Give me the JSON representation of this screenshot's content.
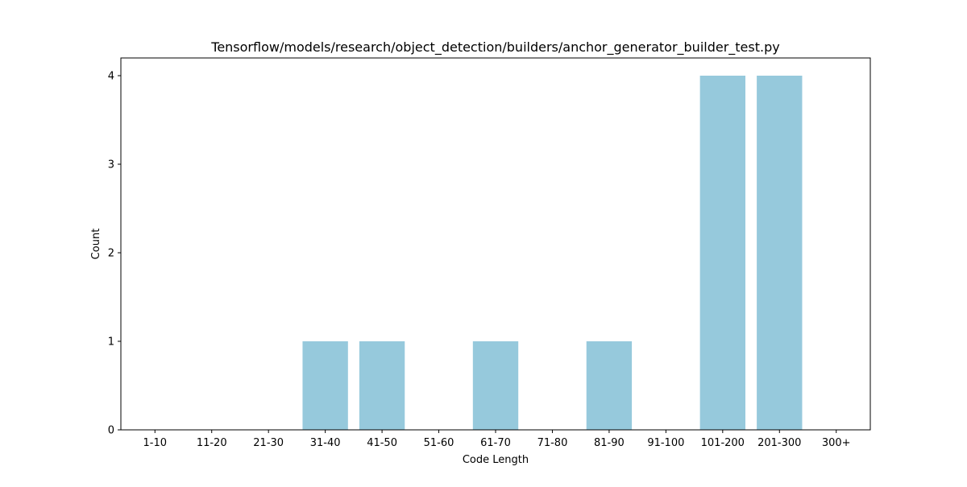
{
  "chart_data": {
    "type": "bar",
    "title": "Tensorflow/models/research/object_detection/builders/anchor_generator_builder_test.py",
    "xlabel": "Code Length",
    "ylabel": "Count",
    "categories": [
      "1-10",
      "11-20",
      "21-30",
      "31-40",
      "41-50",
      "51-60",
      "61-70",
      "71-80",
      "81-90",
      "91-100",
      "101-200",
      "201-300",
      "300+"
    ],
    "values": [
      0,
      0,
      0,
      1,
      1,
      0,
      1,
      0,
      1,
      0,
      4,
      4,
      0
    ],
    "ylim": [
      0,
      4.2
    ],
    "yticks": [
      0,
      1,
      2,
      3,
      4
    ],
    "bar_color": "#96c9dc",
    "grid": false,
    "legend": "none"
  }
}
